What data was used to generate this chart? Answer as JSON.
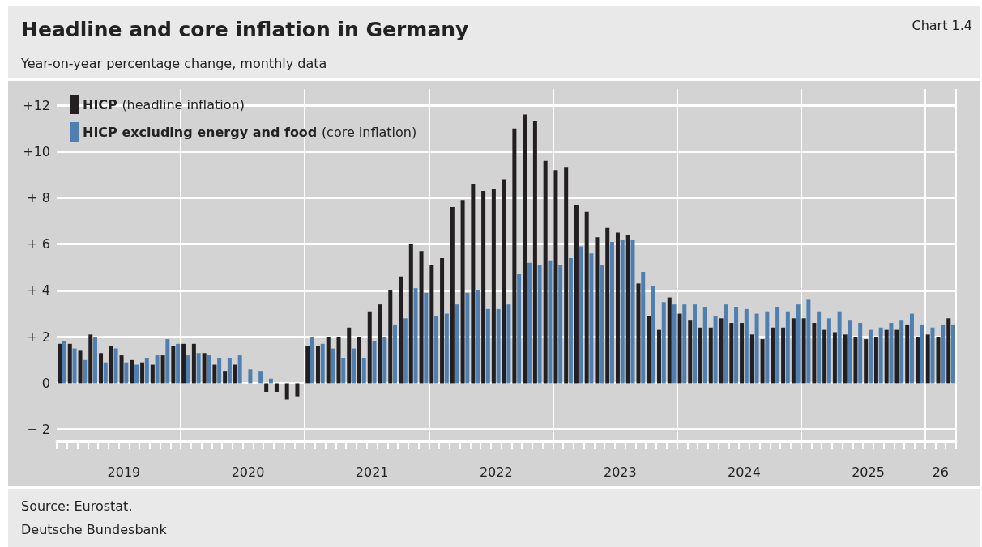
{
  "chart_data": {
    "type": "bar",
    "title": "Headline and core inflation in Germany",
    "subtitle": "Year-on-year percentage change, monthly data",
    "annotations": [
      "Chart 1.4",
      "Source: Eurostat.",
      "Deutsche Bundesbank"
    ],
    "categories": [
      null,
      null,
      null,
      null,
      null,
      null,
      "2019",
      null,
      null,
      null,
      null,
      null,
      null,
      null,
      null,
      null,
      null,
      null,
      "2020",
      null,
      null,
      null,
      null,
      null,
      null,
      null,
      null,
      null,
      null,
      null,
      "2021",
      null,
      null,
      null,
      null,
      null,
      null,
      null,
      null,
      null,
      null,
      null,
      "2022",
      null,
      null,
      null,
      null,
      null,
      null,
      null,
      null,
      null,
      null,
      null,
      "2023",
      null,
      null,
      null,
      null,
      null,
      null,
      null,
      null,
      null,
      null,
      null,
      "2024",
      null,
      null,
      null,
      null,
      null,
      null,
      null,
      null,
      null,
      null,
      null,
      "2025",
      null,
      null,
      null,
      null,
      null,
      null,
      "26",
      null
    ],
    "series": [
      {
        "name": "HICP (headline inflation)",
        "color": "#231f20",
        "values": [
          1.7,
          1.7,
          1.4,
          2.1,
          1.3,
          1.6,
          1.2,
          1.0,
          0.9,
          0.8,
          1.2,
          1.6,
          1.7,
          1.7,
          1.3,
          0.8,
          0.5,
          0.8,
          0.0,
          0.0,
          -0.4,
          -0.4,
          -0.7,
          -0.6,
          1.6,
          1.6,
          2.0,
          2.0,
          2.4,
          2.0,
          3.1,
          3.4,
          4.0,
          4.6,
          6.0,
          5.7,
          5.1,
          5.4,
          7.6,
          7.9,
          8.6,
          8.3,
          8.4,
          8.8,
          11.0,
          11.6,
          11.3,
          9.6,
          9.2,
          9.3,
          7.7,
          7.4,
          6.3,
          6.7,
          6.5,
          6.4,
          4.3,
          2.9,
          2.3,
          3.7,
          3.0,
          2.7,
          2.4,
          2.4,
          2.8,
          2.6,
          2.6,
          2.1,
          1.9,
          2.4,
          2.4,
          2.8,
          2.8,
          2.6,
          2.3,
          2.2,
          2.1,
          2.0,
          1.9,
          2.0,
          2.3,
          2.3,
          2.5,
          2.0,
          2.1,
          2.0,
          2.8
        ]
      },
      {
        "name": "HICP excluding energy and food (core inflation)",
        "color": "#4f7fb0",
        "values": [
          1.8,
          1.5,
          1.0,
          2.0,
          0.9,
          1.5,
          0.9,
          0.8,
          1.1,
          1.2,
          1.9,
          1.7,
          1.2,
          1.3,
          1.2,
          1.1,
          1.1,
          1.2,
          0.6,
          0.5,
          0.2,
          0.0,
          0.0,
          0.0,
          2.0,
          1.7,
          1.5,
          1.1,
          1.5,
          1.1,
          1.8,
          2.0,
          2.5,
          2.8,
          4.1,
          3.9,
          2.9,
          3.0,
          3.4,
          3.9,
          4.0,
          3.2,
          3.2,
          3.4,
          4.7,
          5.2,
          5.1,
          5.3,
          5.1,
          5.4,
          5.9,
          5.6,
          5.1,
          6.1,
          6.2,
          6.2,
          4.8,
          4.2,
          3.5,
          3.4,
          3.4,
          3.4,
          3.3,
          2.9,
          3.4,
          3.3,
          3.2,
          3.0,
          3.1,
          3.3,
          3.1,
          3.4,
          3.6,
          3.1,
          2.8,
          3.1,
          2.7,
          2.6,
          2.3,
          2.4,
          2.6,
          2.7,
          3.0,
          2.5,
          2.4,
          2.5,
          2.5
        ]
      }
    ],
    "ylim": [
      -2.5,
      12.7
    ],
    "yticks": [
      {
        "value": -2,
        "label": "− 2"
      },
      0,
      {
        "value": 2,
        "label": "+ 2"
      },
      {
        "value": 4,
        "label": "+ 4"
      },
      {
        "value": 6,
        "label": "+ 6"
      },
      {
        "value": 8,
        "label": "+ 8"
      },
      {
        "value": 10,
        "label": "+10"
      },
      {
        "value": 12,
        "label": "+12"
      }
    ],
    "grid": true,
    "legend": "top left"
  }
}
